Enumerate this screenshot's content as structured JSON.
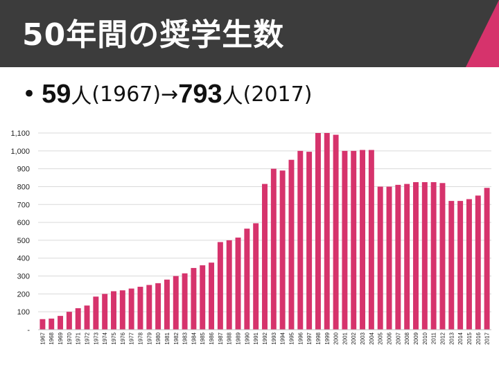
{
  "slide": {
    "title": "50年間の奨学生数",
    "bullet": {
      "start_count": "59",
      "unit": "人",
      "start_year": "(1967)",
      "arrow": "→",
      "end_count": "793",
      "end_year": "(2017)"
    }
  },
  "colors": {
    "header_bg": "#3c3c3c",
    "accent": "#d6336c",
    "bar": "#d6336c",
    "grid": "#d9d9d9"
  },
  "chart_data": {
    "type": "bar",
    "title": "",
    "xlabel": "",
    "ylabel": "",
    "ylim": [
      0,
      1100
    ],
    "yticks": [
      0,
      100,
      200,
      300,
      400,
      500,
      600,
      700,
      800,
      900,
      1000,
      1100
    ],
    "ytick_labels": [
      "-",
      "100",
      "200",
      "300",
      "400",
      "500",
      "600",
      "700",
      "800",
      "900",
      "1,000",
      "1,100"
    ],
    "categories": [
      "1967",
      "1968",
      "1969",
      "1970",
      "1971",
      "1972",
      "1973",
      "1974",
      "1975",
      "1976",
      "1977",
      "1978",
      "1979",
      "1980",
      "1981",
      "1982",
      "1983",
      "1984",
      "1985",
      "1986",
      "1987",
      "1988",
      "1989",
      "1990",
      "1991",
      "1992",
      "1993",
      "1994",
      "1995",
      "1996",
      "1997",
      "1998",
      "1999",
      "2000",
      "2001",
      "2002",
      "2003",
      "2004",
      "2005",
      "2006",
      "2007",
      "2008",
      "2009",
      "2010",
      "2011",
      "2012",
      "2013",
      "2014",
      "2015",
      "2016",
      "2017"
    ],
    "values": [
      59,
      62,
      77,
      100,
      120,
      135,
      185,
      200,
      215,
      220,
      230,
      240,
      250,
      260,
      280,
      300,
      315,
      345,
      360,
      375,
      490,
      500,
      515,
      565,
      595,
      815,
      900,
      890,
      950,
      1000,
      995,
      1100,
      1100,
      1090,
      1000,
      1000,
      1005,
      1005,
      800,
      800,
      810,
      815,
      825,
      825,
      825,
      820,
      720,
      720,
      730,
      750,
      793
    ]
  }
}
